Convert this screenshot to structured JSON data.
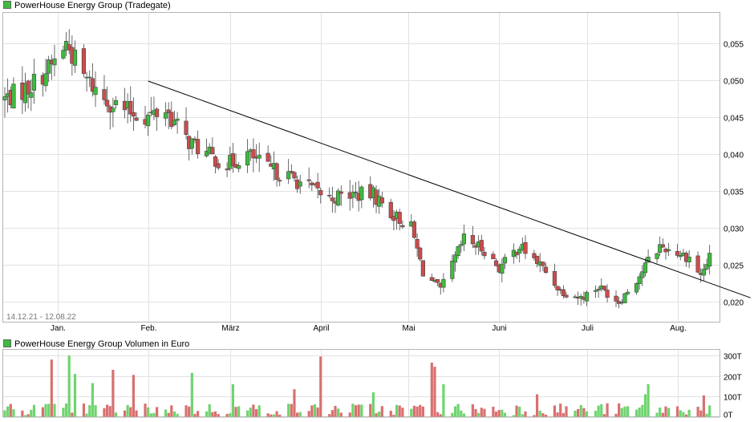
{
  "chart_data": [
    {
      "type": "candlestick",
      "title": "PowerHouse Energy Group (Tradegate)",
      "date_range": "14.12.21 - 12.08.22",
      "x_tick_labels": [
        "Jan.",
        "Feb.",
        "März",
        "April",
        "Mai",
        "Juni",
        "Juli",
        "Aug."
      ],
      "y_tick_labels": [
        "0,055",
        "0,050",
        "0,045",
        "0,040",
        "0,035",
        "0,030",
        "0,025",
        "0,020"
      ],
      "y_ticks": [
        0.055,
        0.05,
        0.045,
        0.04,
        0.035,
        0.03,
        0.025,
        0.02
      ],
      "ylim": [
        0.0172,
        0.0592
      ],
      "grid": true,
      "up_color": "#3dbb3d",
      "down_color": "#cc4c4c",
      "trendline": {
        "from": [
          "2022-02-01",
          0.0499
        ],
        "to": [
          "2022-08-26",
          0.0205
        ]
      },
      "waypoints": [
        [
          "2021-12-14",
          0.0475
        ],
        [
          "2021-12-22",
          0.049
        ],
        [
          "2021-12-30",
          0.052
        ],
        [
          "2022-01-04",
          0.055
        ],
        [
          "2022-01-10",
          0.0505
        ],
        [
          "2022-01-17",
          0.0475
        ],
        [
          "2022-01-24",
          0.046
        ],
        [
          "2022-01-31",
          0.045
        ],
        [
          "2022-02-07",
          0.046
        ],
        [
          "2022-02-14",
          0.042
        ],
        [
          "2022-02-21",
          0.04
        ],
        [
          "2022-02-28",
          0.0385
        ],
        [
          "2022-03-07",
          0.04
        ],
        [
          "2022-03-14",
          0.038
        ],
        [
          "2022-03-21",
          0.037
        ],
        [
          "2022-03-28",
          0.0355
        ],
        [
          "2022-04-04",
          0.034
        ],
        [
          "2022-04-11",
          0.0345
        ],
        [
          "2022-04-19",
          0.0345
        ],
        [
          "2022-04-25",
          0.032
        ],
        [
          "2022-05-02",
          0.03
        ],
        [
          "2022-05-06",
          0.024
        ],
        [
          "2022-05-12",
          0.0215
        ],
        [
          "2022-05-16",
          0.025
        ],
        [
          "2022-05-20",
          0.0285
        ],
        [
          "2022-05-27",
          0.027
        ],
        [
          "2022-06-01",
          0.0245
        ],
        [
          "2022-06-08",
          0.0275
        ],
        [
          "2022-06-15",
          0.025
        ],
        [
          "2022-06-22",
          0.0215
        ],
        [
          "2022-06-29",
          0.0205
        ],
        [
          "2022-07-05",
          0.022
        ],
        [
          "2022-07-12",
          0.02
        ],
        [
          "2022-07-19",
          0.0235
        ],
        [
          "2022-07-22",
          0.0255
        ],
        [
          "2022-07-26",
          0.0275
        ],
        [
          "2022-08-02",
          0.0265
        ],
        [
          "2022-08-05",
          0.026
        ],
        [
          "2022-08-09",
          0.0235
        ],
        [
          "2022-08-12",
          0.026
        ]
      ]
    },
    {
      "type": "bar",
      "title": "PowerHouse Energy Group Volumen in Euro",
      "y_tick_labels": [
        "300T",
        "200T",
        "100T",
        "0T"
      ],
      "y_ticks": [
        300,
        200,
        100,
        0
      ],
      "ylim": [
        0,
        330
      ],
      "unit": "T",
      "grid": true,
      "up_color": "#6fd46f",
      "down_color": "#d97070",
      "neutral_color": "#c0c0c0",
      "spikes": [
        [
          "2021-12-30",
          280,
          "down"
        ],
        [
          "2022-01-05",
          300,
          "up"
        ],
        [
          "2022-01-07",
          210,
          "up"
        ],
        [
          "2022-01-13",
          165,
          "up"
        ],
        [
          "2022-01-20",
          230,
          "down"
        ],
        [
          "2022-01-27",
          205,
          "down"
        ],
        [
          "2022-02-16",
          215,
          "up"
        ],
        [
          "2022-03-02",
          160,
          "up"
        ],
        [
          "2022-03-23",
          135,
          "down"
        ],
        [
          "2022-04-01",
          295,
          "down"
        ],
        [
          "2022-04-19",
          120,
          "up"
        ],
        [
          "2022-05-09",
          265,
          "down"
        ],
        [
          "2022-05-10",
          245,
          "down"
        ],
        [
          "2022-05-13",
          160,
          "up"
        ],
        [
          "2022-06-14",
          110,
          "down"
        ],
        [
          "2022-07-21",
          110,
          "up"
        ],
        [
          "2022-07-22",
          160,
          "up"
        ],
        [
          "2022-08-10",
          105,
          "down"
        ]
      ]
    }
  ]
}
